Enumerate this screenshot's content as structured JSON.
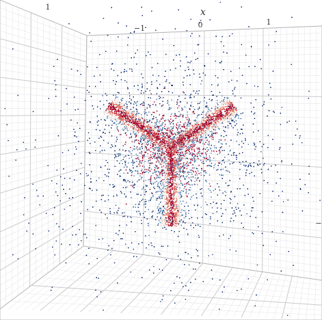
{
  "chart_data": {
    "type": "scatter",
    "title": "",
    "axes": {
      "x": {
        "label": "x",
        "ticks": [
          "−1",
          "0",
          "1"
        ]
      },
      "left_tick": "1",
      "right_tick": "−"
    },
    "grid": true,
    "legend": "none",
    "point_count_estimate": 30000,
    "shape": "three-armed star (Y-shaped) dense core in red, surrounded by a diffuse blue halo",
    "arms": [
      {
        "name": "upper-left",
        "direction": [
          -0.83,
          -0.56
        ]
      },
      {
        "name": "upper-right",
        "direction": [
          0.83,
          -0.56
        ]
      },
      {
        "name": "bottom",
        "direction": [
          0.0,
          1.0
        ]
      }
    ],
    "colorscale": {
      "low": "#0b2a6e",
      "mid_low": "#4a7fb0",
      "mid": "#e9d3c8",
      "mid_high": "#e16a5a",
      "high": "#a50026"
    },
    "colors": {
      "grid_major": "#c9c9c9",
      "grid_minor": "#e6e6e6",
      "frame": "#b0b0b0"
    }
  }
}
